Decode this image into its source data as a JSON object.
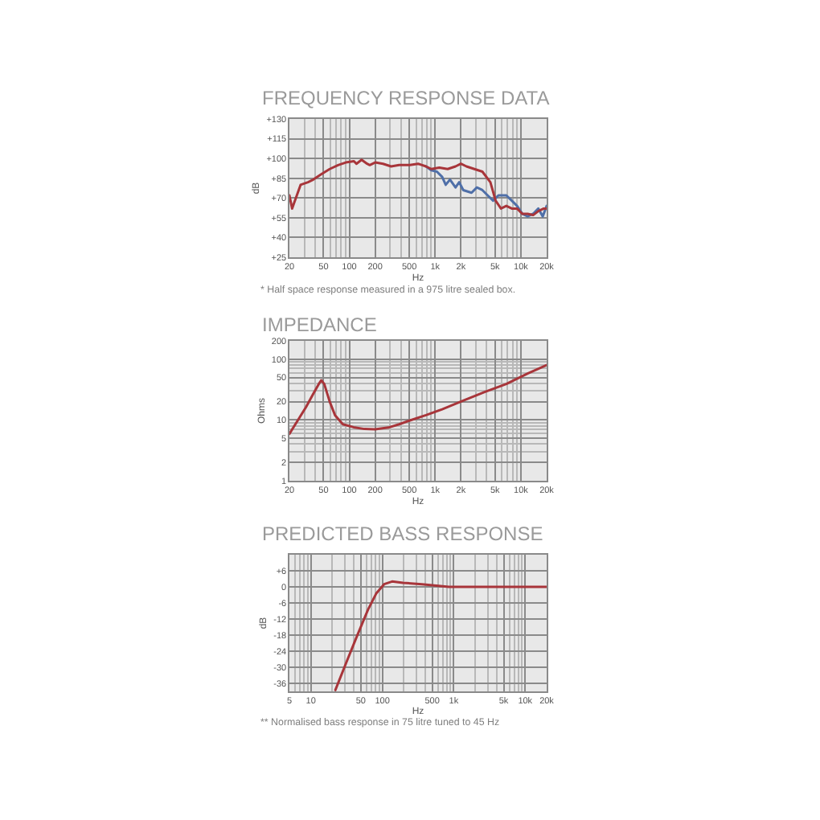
{
  "chart_data": [
    {
      "type": "line",
      "title": "FREQUENCY RESPONSE DATA",
      "xlabel": "Hz",
      "ylabel": "dB",
      "log": "x",
      "grid": true,
      "xlim": [
        20,
        20000
      ],
      "xticks": [
        20,
        50,
        100,
        200,
        500,
        {
          "value": 1000,
          "label": "1k"
        },
        {
          "value": 2000,
          "label": "2k"
        },
        {
          "value": 5000,
          "label": "5k"
        },
        {
          "value": 10000,
          "label": "10k"
        },
        {
          "value": 20000,
          "label": "20k"
        }
      ],
      "ylim": [
        25,
        130
      ],
      "yticks": [
        {
          "value": 25,
          "label": "+25"
        },
        {
          "value": 40,
          "label": "+40"
        },
        {
          "value": 55,
          "label": "+55"
        },
        {
          "value": 70,
          "label": "+70"
        },
        {
          "value": 85,
          "label": "+85"
        },
        {
          "value": 100,
          "label": "+100"
        },
        {
          "value": 115,
          "label": "+115"
        },
        {
          "value": 130,
          "label": "+130"
        }
      ],
      "annotations": [
        "* Half space response measured in a 975 litre sealed box."
      ],
      "series": [
        {
          "color": "#4f6fa8",
          "x": [
            783,
            903,
            1050,
            1210,
            1330,
            1490,
            1730,
            1910,
            2130,
            2660,
            3070,
            3560,
            4100,
            4750,
            5480,
            6770,
            7840,
            9030,
            10400,
            12000,
            13900,
            16000,
            18000,
            20000
          ],
          "values": [
            94,
            91,
            90,
            86,
            80,
            84,
            78,
            82,
            76,
            74,
            78,
            76,
            72,
            68,
            72,
            72,
            68,
            64,
            58,
            56,
            58,
            62,
            56,
            64
          ]
        },
        {
          "color": "#a8353a",
          "x": [
            20,
            21.5,
            27,
            33,
            38,
            47,
            59,
            74,
            91,
            113,
            121,
            139,
            161,
            173,
            200,
            247,
            307,
            381,
            509,
            632,
            783,
            903,
            1120,
            1400,
            1730,
            2000,
            2320,
            2870,
            3560,
            4410,
            5080,
            5860,
            6770,
            7840,
            9030,
            10400,
            12000,
            13900,
            16000,
            18500,
            20000
          ],
          "values": [
            72,
            62,
            80,
            82,
            84,
            88,
            92,
            95,
            97,
            98,
            96,
            99,
            96,
            95,
            97,
            96,
            94,
            95,
            95,
            96,
            94,
            92,
            93,
            92,
            94,
            96,
            94,
            92,
            90,
            82,
            68,
            62,
            64,
            62,
            62,
            58,
            58,
            57,
            60,
            62,
            62
          ]
        }
      ]
    },
    {
      "type": "line",
      "title": "IMPEDANCE",
      "xlabel": "Hz",
      "ylabel": "Ohms",
      "log": "xy",
      "grid": true,
      "xlim": [
        20,
        20000
      ],
      "xticks": [
        20,
        50,
        100,
        200,
        500,
        {
          "value": 1000,
          "label": "1k"
        },
        {
          "value": 2000,
          "label": "2k"
        },
        {
          "value": 5000,
          "label": "5k"
        },
        {
          "value": 10000,
          "label": "10k"
        },
        {
          "value": 20000,
          "label": "20k"
        }
      ],
      "ylim": [
        1,
        200
      ],
      "yticks": [
        1,
        2,
        5,
        10,
        20,
        50,
        100,
        200
      ],
      "series": [
        {
          "color": "#a8353a",
          "x": [
            20,
            25,
            31,
            38,
            44,
            47,
            51,
            59,
            68,
            84,
            112,
            150,
            200,
            285,
            381,
            509,
            783,
            1210,
            2150,
            3830,
            6770,
            12000,
            20000
          ],
          "values": [
            5.9,
            9.8,
            16,
            27,
            39,
            45,
            39,
            20,
            12,
            8.5,
            7.6,
            7.1,
            7,
            7.5,
            8.5,
            9.8,
            12,
            15,
            21,
            29,
            39,
            58,
            80
          ]
        }
      ]
    },
    {
      "type": "line",
      "title": "PREDICTED BASS RESPONSE",
      "xlabel": "Hz",
      "ylabel": "dB",
      "log": "x",
      "grid": true,
      "xlim": [
        5,
        20000
      ],
      "xticks": [
        5,
        10,
        50,
        100,
        500,
        {
          "value": 1000,
          "label": "1k"
        },
        {
          "value": 5000,
          "label": "5k"
        },
        {
          "value": 10000,
          "label": "10k"
        },
        {
          "value": 20000,
          "label": "20k"
        }
      ],
      "ylim": [
        -39,
        12
      ],
      "yticks": [
        -36,
        -30,
        -24,
        -18,
        -12,
        -6,
        0,
        {
          "value": 6,
          "label": "+6"
        }
      ],
      "annotations": [
        "** Normalised bass response in 75 litre tuned to 45 Hz"
      ],
      "series": [
        {
          "color": "#a8353a",
          "x": [
            22,
            31,
            44,
            63,
            82,
            106,
            137,
            195,
            358,
            855,
            20000
          ],
          "values": [
            -38.5,
            -28.5,
            -18.5,
            -8.5,
            -2.5,
            1,
            2,
            1.5,
            1,
            0,
            0
          ]
        }
      ]
    }
  ]
}
